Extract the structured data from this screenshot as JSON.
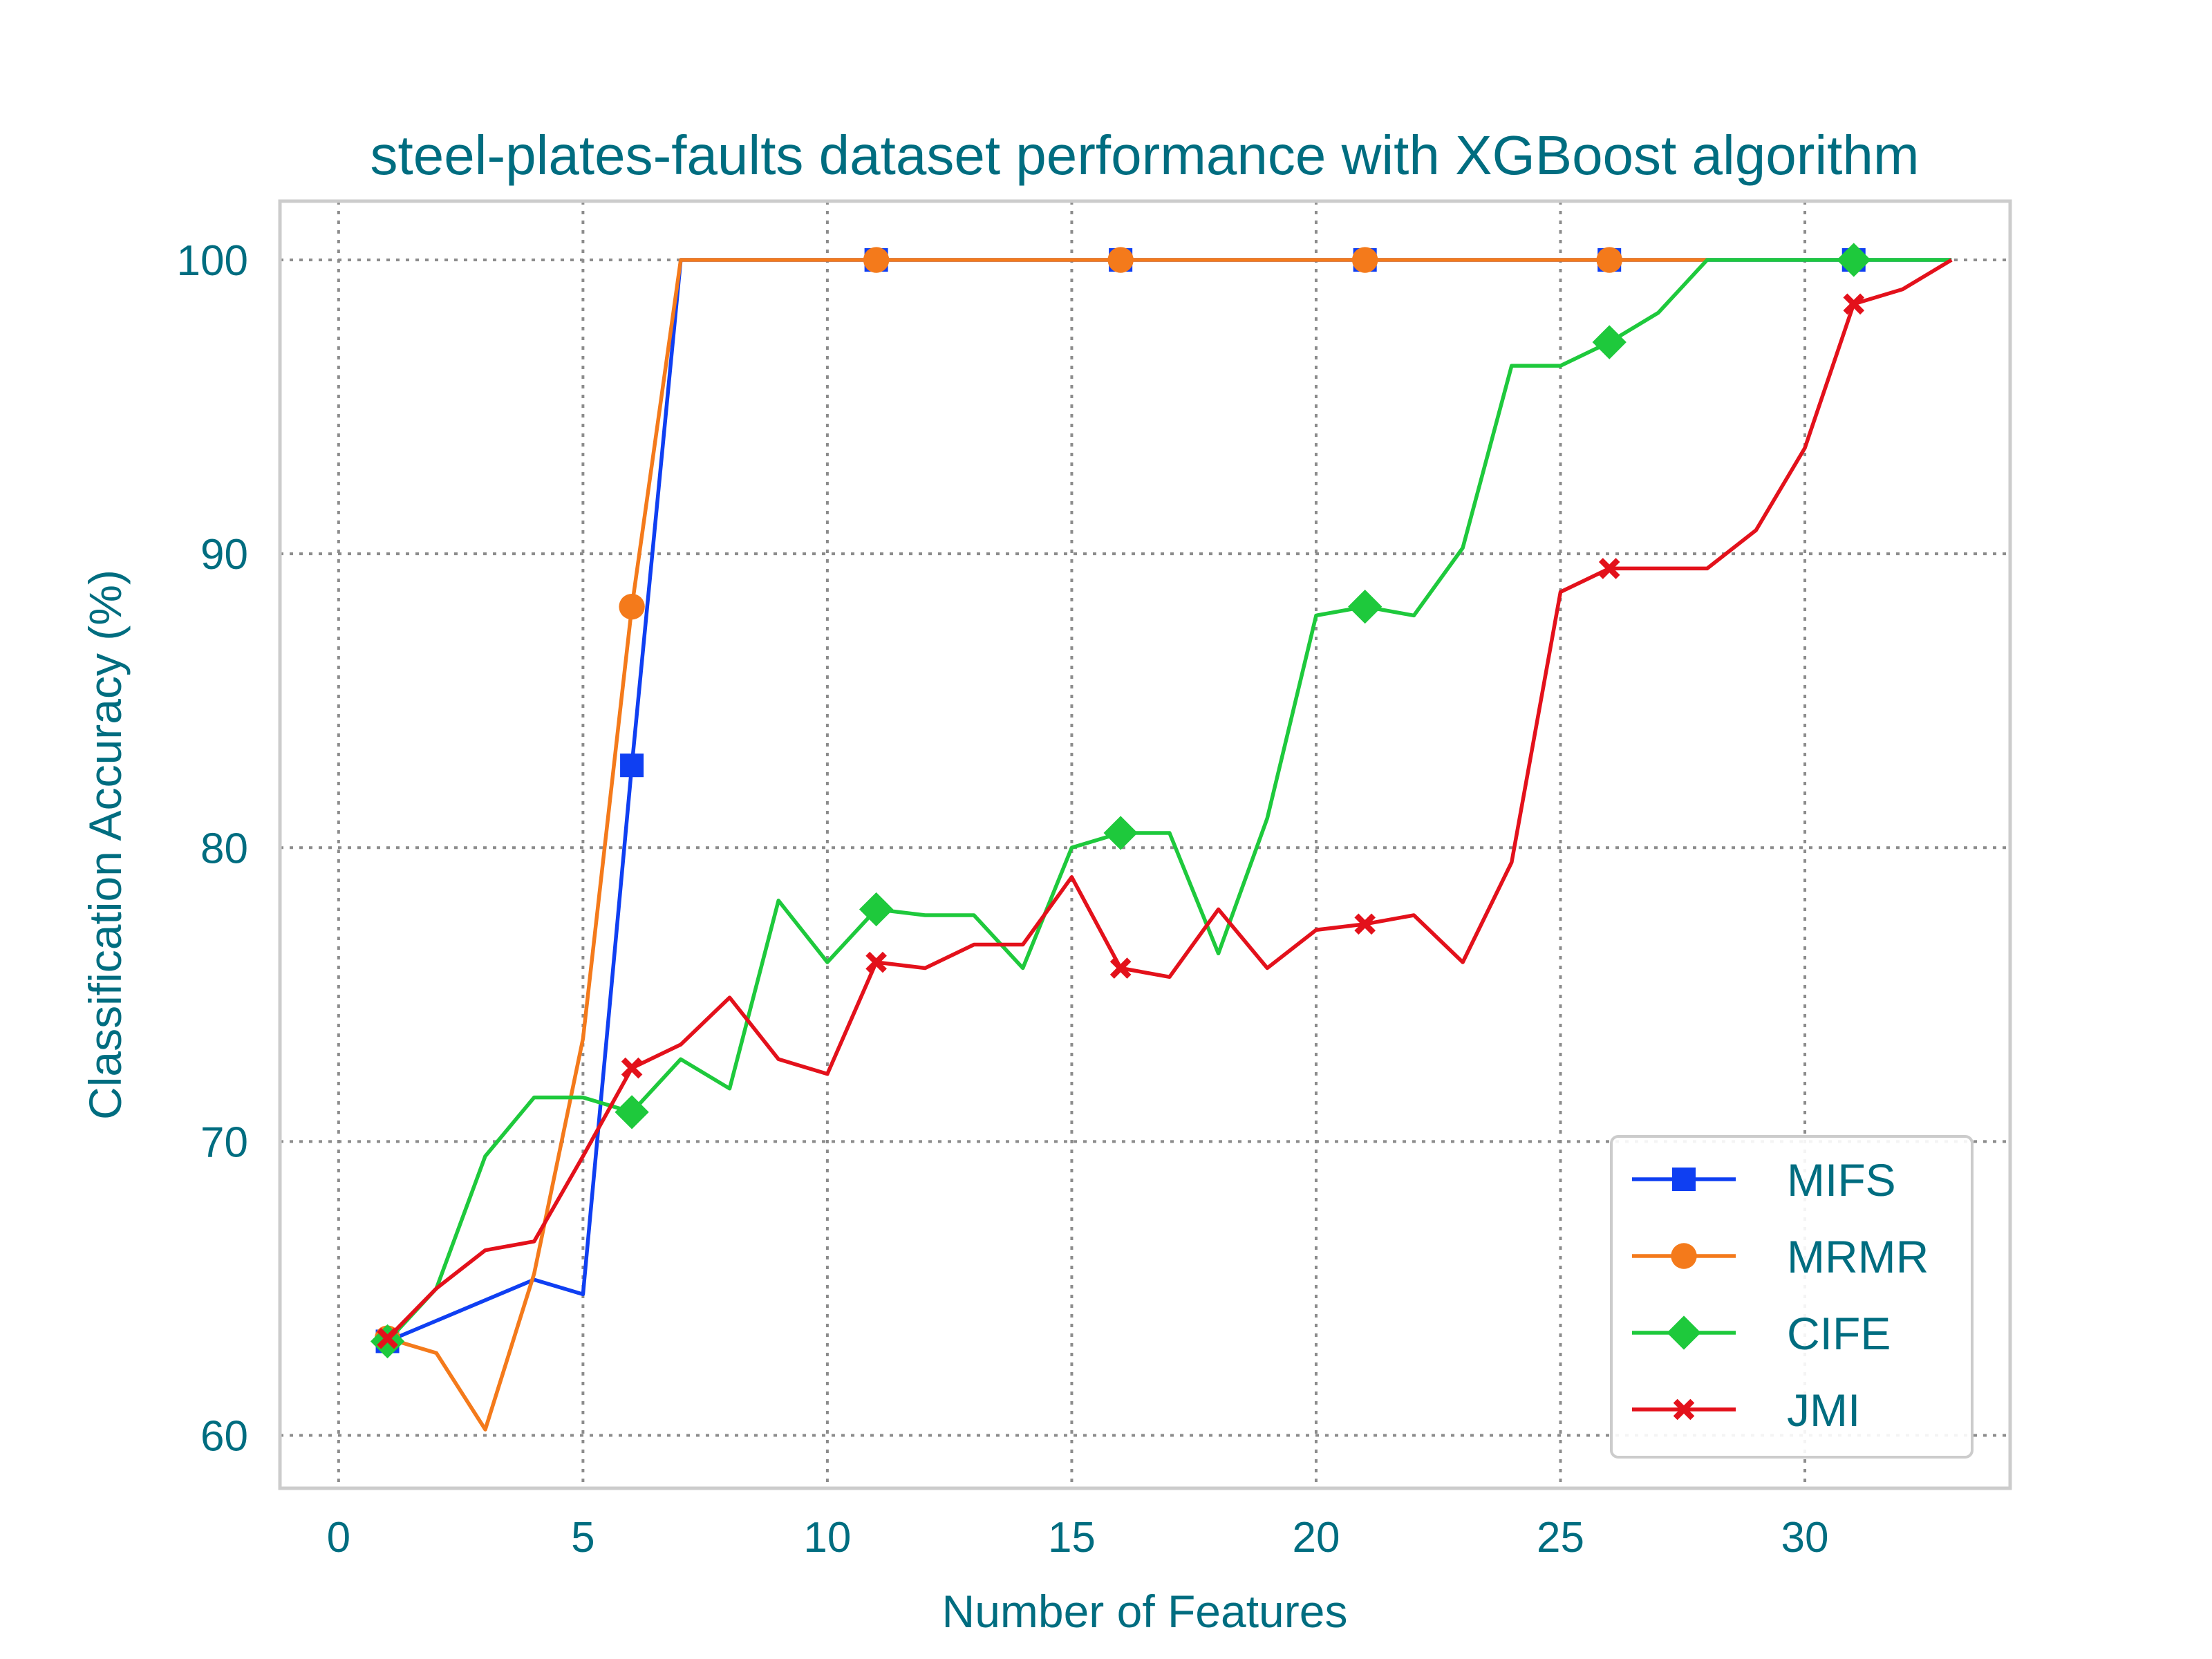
{
  "chart_data": {
    "type": "line",
    "title": "steel-plates-faults dataset performance with XGBoost algorithm",
    "xlabel": "Number of Features",
    "ylabel": "Classification Accuracy (%)",
    "xlim": [
      -1.2,
      34.2
    ],
    "ylim": [
      58.2,
      102
    ],
    "xticks": [
      0,
      5,
      10,
      15,
      20,
      25,
      30
    ],
    "yticks": [
      60,
      70,
      80,
      90,
      100
    ],
    "grid": true,
    "legend_position": "lower-right",
    "series": [
      {
        "name": "MIFS",
        "color": "#0f3ff2",
        "marker": "square",
        "x": [
          1,
          4,
          5,
          6,
          7,
          8,
          9,
          10,
          11,
          12,
          13,
          14,
          15,
          16,
          17,
          18,
          19,
          20,
          21,
          22,
          23,
          24,
          25,
          26,
          27,
          28,
          29,
          30,
          31,
          32,
          33
        ],
        "y": [
          63.2,
          65.3,
          64.8,
          82.8,
          100,
          100,
          100,
          100,
          100,
          100,
          100,
          100,
          100,
          100,
          100,
          100,
          100,
          100,
          100,
          100,
          100,
          100,
          100,
          100,
          100,
          100,
          100,
          100,
          100,
          100,
          100
        ],
        "marker_every": [
          0,
          3,
          8,
          13,
          18,
          23,
          28
        ]
      },
      {
        "name": "MRMR",
        "color": "#f47a1b",
        "marker": "circle",
        "x": [
          1,
          2,
          3,
          4,
          5,
          6,
          7,
          8,
          9,
          10,
          11,
          12,
          13,
          14,
          15,
          16,
          17,
          18,
          19,
          20,
          21,
          22,
          23,
          24,
          25,
          26,
          27,
          28
        ],
        "y": [
          63.3,
          62.8,
          60.2,
          65.5,
          73.5,
          88.2,
          100,
          100,
          100,
          100,
          100,
          100,
          100,
          100,
          100,
          100,
          100,
          100,
          100,
          100,
          100,
          100,
          100,
          100,
          100,
          100,
          100,
          100
        ],
        "marker_every": [
          0,
          5,
          10,
          15,
          20,
          25
        ]
      },
      {
        "name": "CIFE",
        "color": "#1ec93c",
        "marker": "diamond",
        "x": [
          1,
          2,
          3,
          4,
          5,
          6,
          7,
          8,
          9,
          10,
          11,
          12,
          13,
          14,
          15,
          16,
          17,
          18,
          19,
          20,
          21,
          22,
          23,
          24,
          25,
          26,
          27,
          28,
          29,
          30,
          31,
          32,
          33
        ],
        "y": [
          63.2,
          65.0,
          69.5,
          71.5,
          71.5,
          71.0,
          72.8,
          71.8,
          78.2,
          76.1,
          77.9,
          77.7,
          77.7,
          75.9,
          80.0,
          80.5,
          80.5,
          76.4,
          81.0,
          87.9,
          88.2,
          87.9,
          90.2,
          96.4,
          96.4,
          97.2,
          98.2,
          100,
          100,
          100,
          100,
          100,
          100
        ],
        "marker_every": [
          0,
          5,
          10,
          15,
          20,
          25,
          30
        ]
      },
      {
        "name": "JMI",
        "color": "#e3111b",
        "marker": "x",
        "x": [
          1,
          2,
          3,
          4,
          5,
          6,
          7,
          8,
          9,
          10,
          11,
          12,
          13,
          14,
          15,
          16,
          17,
          18,
          19,
          20,
          21,
          22,
          23,
          24,
          25,
          26,
          27,
          28,
          29,
          30,
          31,
          32,
          33
        ],
        "y": [
          63.3,
          65.0,
          66.3,
          66.6,
          69.5,
          72.5,
          73.3,
          74.9,
          72.8,
          72.3,
          76.1,
          75.9,
          76.7,
          76.7,
          79.0,
          75.9,
          75.6,
          77.9,
          75.9,
          77.2,
          77.4,
          77.7,
          76.1,
          79.5,
          88.7,
          89.5,
          89.5,
          89.5,
          90.8,
          93.6,
          98.5,
          99.0,
          100
        ],
        "marker_every": [
          0,
          5,
          10,
          15,
          20,
          25,
          30
        ]
      }
    ]
  }
}
